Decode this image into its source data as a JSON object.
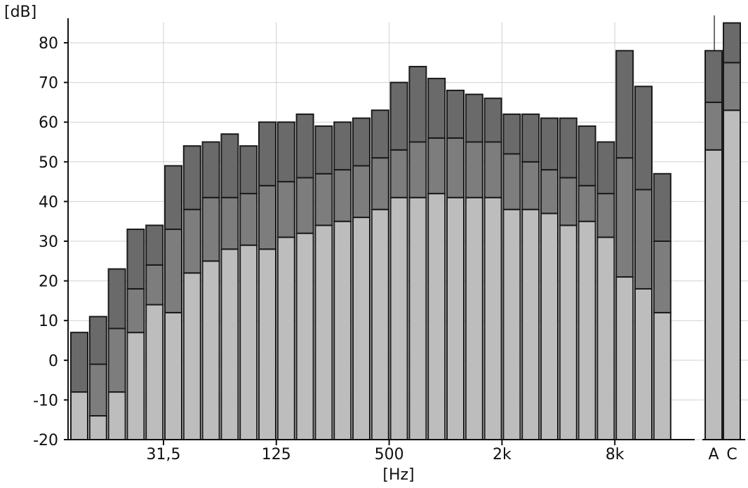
{
  "chart_data": {
    "type": "bar",
    "stacked_levels": true,
    "ylabel": "[dB]",
    "xlabel": "[Hz]",
    "ylim": [
      -20,
      85
    ],
    "yticks": [
      -20,
      -10,
      0,
      10,
      20,
      30,
      40,
      50,
      60,
      70,
      80
    ],
    "xtick_labels": [
      {
        "label": "31,5",
        "band_index": 5
      },
      {
        "label": "125",
        "band_index": 11
      },
      {
        "label": "500",
        "band_index": 17
      },
      {
        "label": "2k",
        "band_index": 23
      },
      {
        "label": "8k",
        "band_index": 29
      }
    ],
    "series": [
      {
        "role": "low",
        "values": [
          -8,
          -14,
          -8,
          7,
          14,
          12,
          22,
          25,
          28,
          29,
          28,
          31,
          32,
          34,
          35,
          36,
          38,
          41,
          41,
          42,
          41,
          41,
          41,
          38,
          38,
          37,
          34,
          35,
          31,
          21,
          18,
          12
        ]
      },
      {
        "role": "mid",
        "values": [
          -8,
          -1,
          8,
          18,
          24,
          33,
          38,
          41,
          41,
          42,
          44,
          45,
          46,
          47,
          48,
          49,
          51,
          53,
          55,
          56,
          56,
          55,
          55,
          52,
          50,
          48,
          46,
          44,
          42,
          51,
          43,
          30
        ]
      },
      {
        "role": "high",
        "values": [
          7,
          11,
          23,
          33,
          34,
          49,
          54,
          55,
          57,
          54,
          60,
          60,
          62,
          59,
          60,
          61,
          63,
          70,
          74,
          71,
          68,
          67,
          66,
          62,
          62,
          61,
          61,
          59,
          55,
          78,
          69,
          47
        ]
      }
    ],
    "totals": {
      "labels": [
        "A",
        "C"
      ],
      "low": [
        53,
        63
      ],
      "mid": [
        65,
        75
      ],
      "high": [
        78,
        85
      ]
    },
    "colors": {
      "low": "#bdbdbd",
      "mid": "#7d7d7d",
      "high": "#6a6a6a",
      "outline": "#1a1a1a",
      "grid": "#d0d0d0"
    },
    "grid": true
  }
}
